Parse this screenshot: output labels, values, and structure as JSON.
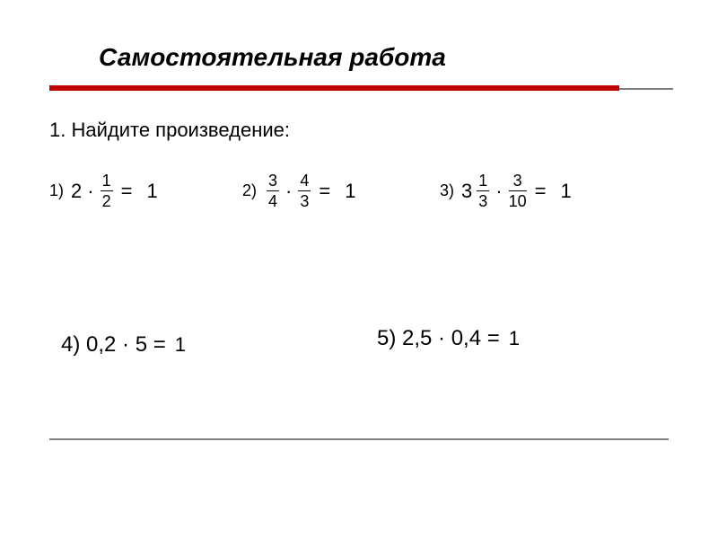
{
  "title": "Самостоятельная работа",
  "instruction": "1.  Найдите произведение:",
  "colors": {
    "red_line": "#c00000",
    "gray_line": "#808080",
    "text": "#000000",
    "background": "#ffffff"
  },
  "problems": {
    "p1": {
      "label": "1)",
      "whole1": "2",
      "dot": "·",
      "frac_num": "1",
      "frac_den": "2",
      "equals": "=",
      "answer": "1"
    },
    "p2": {
      "label": "2)",
      "frac1_num": "3",
      "frac1_den": "4",
      "dot": "·",
      "frac2_num": "4",
      "frac2_den": "3",
      "equals": "=",
      "answer": "1"
    },
    "p3": {
      "label": "3)",
      "whole1": "3",
      "frac1_num": "1",
      "frac1_den": "3",
      "dot": "·",
      "frac2_num": "3",
      "frac2_den": "10",
      "equals": "=",
      "answer": "1"
    },
    "p4": {
      "text": "4)  0,2 · 5 =",
      "answer": "1"
    },
    "p5": {
      "text": "5)  2,5 · 0,4 =",
      "answer": "1"
    }
  }
}
